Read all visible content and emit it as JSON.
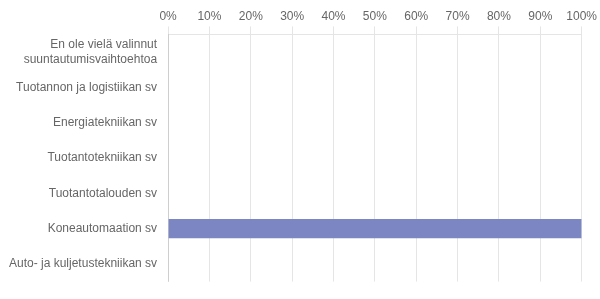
{
  "chart_data": {
    "type": "bar",
    "orientation": "horizontal",
    "categories": [
      "En ole vielä valinnut\nsuuntautumisvaihtoehtoa",
      "Tuotannon ja logistiikan sv",
      "Energiatekniikan sv",
      "Tuotantotekniikan sv",
      "Tuotantotalouden sv",
      "Koneautomaation sv",
      "Auto- ja kuljetustekniikan sv"
    ],
    "values": [
      0,
      0,
      0,
      0,
      0,
      100,
      0
    ],
    "color": "#7b86c2",
    "xlim": [
      0,
      100
    ],
    "xticks": [
      {
        "value": 0,
        "label": "0%"
      },
      {
        "value": 10,
        "label": "10%"
      },
      {
        "value": 20,
        "label": "20%"
      },
      {
        "value": 30,
        "label": "30%"
      },
      {
        "value": 40,
        "label": "40%"
      },
      {
        "value": 50,
        "label": "50%"
      },
      {
        "value": 60,
        "label": "60%"
      },
      {
        "value": 70,
        "label": "70%"
      },
      {
        "value": 80,
        "label": "80%"
      },
      {
        "value": 90,
        "label": "90%"
      },
      {
        "value": 100,
        "label": "100%"
      }
    ],
    "grid": true
  }
}
